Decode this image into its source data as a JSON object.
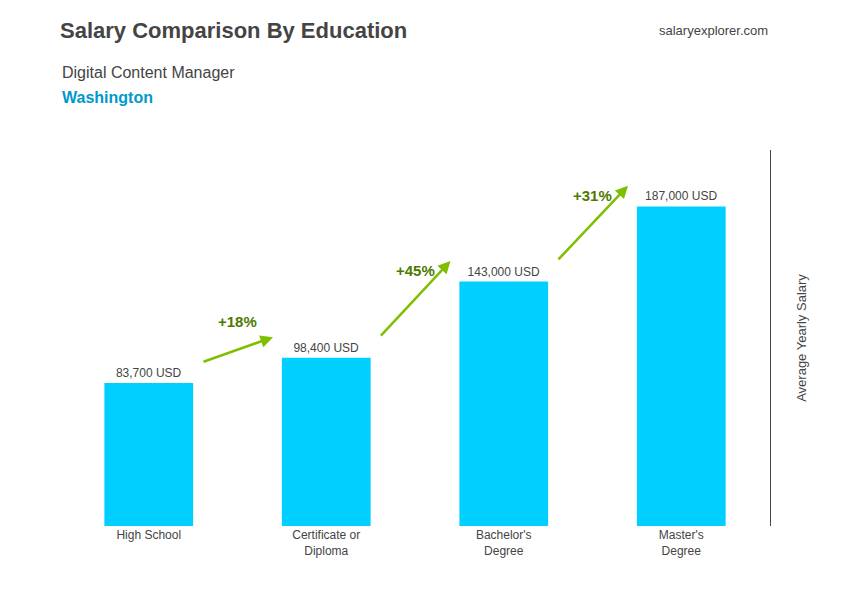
{
  "chart_data": {
    "type": "bar",
    "title": "Salary Comparison By Education",
    "subtitle": [
      "Digital Content Manager",
      "Washington"
    ],
    "credit": "salaryexplorer.com",
    "ylabel": "Average Yearly Salary",
    "categories": [
      "High School",
      "Certificate or\nDiploma",
      "Bachelor's\nDegree",
      "Master's\nDegree"
    ],
    "values": [
      83700,
      98400,
      143000,
      187000
    ],
    "value_labels": [
      "83,700 USD",
      "98,400 USD",
      "143,000 USD",
      "187,000 USD"
    ],
    "data_labels": true,
    "annotations": [
      "+18%",
      "+45%",
      "+31%"
    ],
    "color": "#00cfff",
    "ylim": [
      0,
      220000
    ],
    "yticks": [],
    "tick_labels": "x",
    "grid": false
  }
}
